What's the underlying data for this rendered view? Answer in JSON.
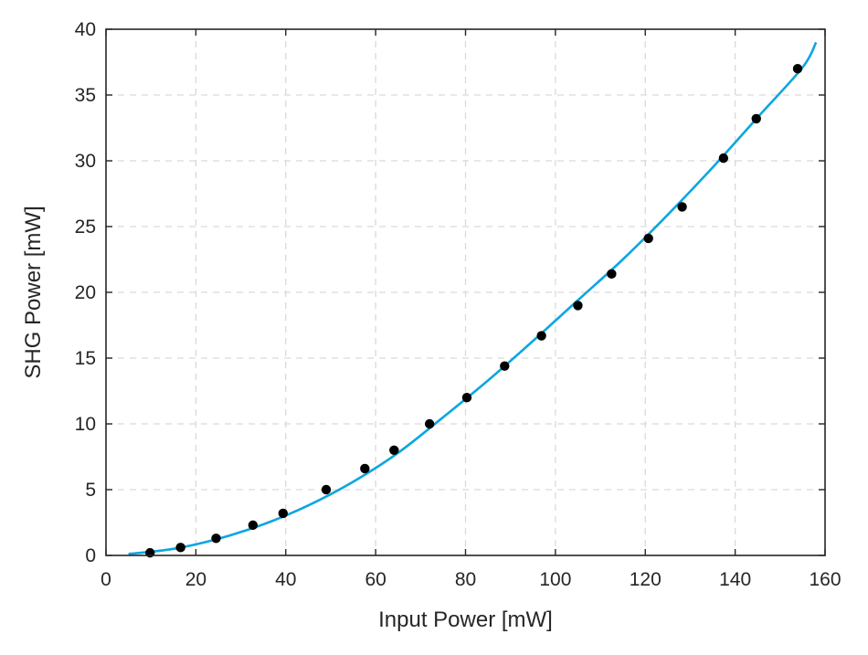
{
  "chart_data": {
    "type": "scatter",
    "xlabel": "Input Power [mW]",
    "ylabel": "SHG Power [mW]",
    "xlim": [
      0,
      160
    ],
    "ylim": [
      0,
      40
    ],
    "x_ticks": [
      "0",
      "20",
      "40",
      "60",
      "80",
      "100",
      "120",
      "140",
      "160"
    ],
    "y_ticks": [
      "0",
      "5",
      "10",
      "15",
      "20",
      "25",
      "30",
      "35",
      "40"
    ],
    "grid": true,
    "legend": "none",
    "series": [
      {
        "kind": "markers",
        "color": "#000000",
        "x": [
          9.8,
          16.6,
          24.5,
          32.7,
          39.4,
          49.0,
          57.6,
          64.1,
          72.0,
          80.3,
          88.7,
          96.9,
          105.0,
          112.5,
          120.7,
          128.2,
          137.4,
          144.7,
          153.9
        ],
        "y": [
          0.2,
          0.6,
          1.3,
          2.3,
          3.2,
          5.0,
          6.6,
          8.0,
          10.0,
          12.0,
          14.4,
          16.7,
          19.0,
          21.4,
          24.1,
          26.5,
          30.2,
          33.2,
          37.0
        ]
      },
      {
        "kind": "line",
        "color": "#0ca6e0",
        "x": [
          5,
          15,
          25,
          35,
          45,
          55,
          65,
          75,
          85,
          95,
          105,
          115,
          125,
          135,
          145,
          155,
          158
        ],
        "y": [
          0.11,
          0.5,
          1.27,
          2.36,
          3.8,
          5.6,
          7.8,
          10.5,
          13.3,
          16.3,
          19.4,
          22.5,
          25.9,
          29.5,
          33.3,
          37.1,
          39.0
        ]
      }
    ]
  }
}
